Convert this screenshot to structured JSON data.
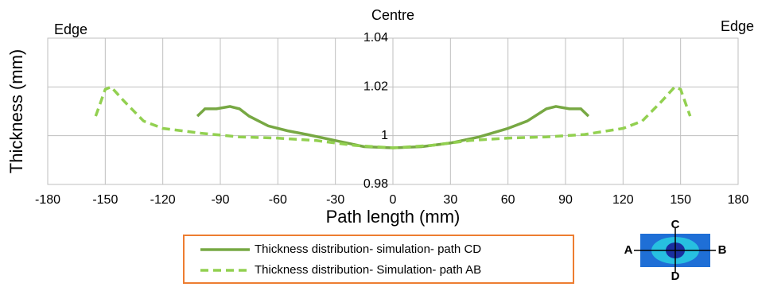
{
  "chart_data": {
    "type": "line",
    "x_label": "Path length (mm)",
    "y_label": "Thickness (mm)",
    "annotations": [
      "Centre",
      "Edge",
      "Edge"
    ],
    "inset_labels": [
      "A",
      "B",
      "C",
      "D"
    ],
    "xlim": [
      -180,
      180
    ],
    "xticks": [
      -180,
      -150,
      -120,
      -90,
      -60,
      -30,
      0,
      30,
      60,
      90,
      120,
      150,
      180
    ],
    "ylim": [
      0.98,
      1.04
    ],
    "yticks": [
      0.98,
      1,
      1.02,
      1.04
    ],
    "grid": true,
    "legend": "bottom",
    "series": [
      {
        "name": "Thickness distribution- simulation- path CD",
        "color": "#77a843",
        "dash": false,
        "x": [
          -102,
          -98,
          -92,
          -85,
          -80,
          -75,
          -65,
          -55,
          -45,
          -30,
          -15,
          0,
          15,
          30,
          45,
          60,
          70,
          80,
          85,
          92,
          98,
          102
        ],
        "values": [
          1.008,
          1.011,
          1.011,
          1.012,
          1.011,
          1.008,
          1.004,
          1.002,
          1.0005,
          0.998,
          0.9955,
          0.995,
          0.9955,
          0.997,
          0.9995,
          1.003,
          1.006,
          1.011,
          1.012,
          1.011,
          1.011,
          1.008
        ]
      },
      {
        "name": "Thickness distribution- Simulation- path AB",
        "color": "#92d050",
        "dash": true,
        "x": [
          -155,
          -150,
          -147,
          -140,
          -130,
          -120,
          -100,
          -80,
          -60,
          -40,
          -20,
          0,
          20,
          40,
          60,
          80,
          100,
          120,
          130,
          140,
          147,
          150,
          155
        ],
        "values": [
          1.008,
          1.019,
          1.02,
          1.014,
          1.006,
          1.003,
          1.001,
          0.9995,
          0.999,
          0.998,
          0.996,
          0.995,
          0.996,
          0.998,
          0.999,
          0.9995,
          1.0005,
          1.003,
          1.006,
          1.014,
          1.02,
          1.019,
          1.008
        ]
      }
    ]
  }
}
